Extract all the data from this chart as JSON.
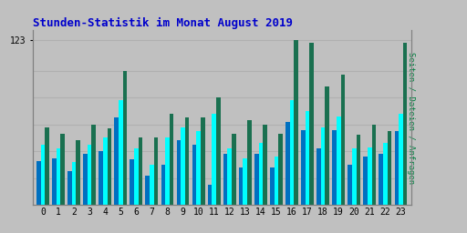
{
  "title": "Stunden-Statistik im Monat August 2019",
  "ylabel_right": "Seiten / Dateien / Anfragen",
  "ytick_label": "123",
  "background_color": "#c0c0c0",
  "plot_bg_color": "#c0c0c0",
  "bar_color_green": "#1a7050",
  "bar_color_cyan": "#00ffff",
  "bar_color_blue": "#0070c0",
  "title_color": "#0000cc",
  "ylabel_color": "#008040",
  "hours": [
    0,
    1,
    2,
    3,
    4,
    5,
    6,
    7,
    8,
    9,
    10,
    11,
    12,
    13,
    14,
    15,
    16,
    17,
    18,
    19,
    20,
    21,
    22,
    23
  ],
  "green_values": [
    58,
    53,
    48,
    60,
    57,
    100,
    50,
    50,
    68,
    65,
    65,
    80,
    53,
    63,
    60,
    53,
    123,
    121,
    88,
    97,
    52,
    60,
    55,
    121
  ],
  "cyan_values": [
    45,
    42,
    32,
    45,
    50,
    78,
    42,
    30,
    50,
    58,
    55,
    68,
    42,
    35,
    46,
    36,
    78,
    70,
    58,
    66,
    42,
    43,
    46,
    68
  ],
  "blue_values": [
    33,
    35,
    25,
    38,
    40,
    65,
    34,
    22,
    30,
    48,
    45,
    15,
    38,
    28,
    38,
    28,
    62,
    56,
    42,
    56,
    30,
    36,
    38,
    55
  ],
  "ylim": [
    0,
    130
  ],
  "yticks": [
    123
  ],
  "grid_color": "#b0b0b0",
  "grid_lines_y": [
    20,
    40,
    60,
    80,
    100,
    123
  ]
}
